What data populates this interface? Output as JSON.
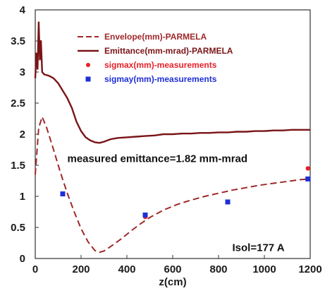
{
  "chart_data": {
    "type": "line",
    "xlabel": "z(cm)",
    "ylabel": "",
    "xlim": [
      0,
      1200
    ],
    "ylim": [
      0,
      4
    ],
    "x_ticks": [
      0,
      200,
      400,
      600,
      800,
      1000,
      1200
    ],
    "y_ticks": [
      0,
      0.5,
      1,
      1.5,
      2,
      2.5,
      3,
      3.5,
      4
    ],
    "y_tick_labels": [
      "0",
      "0.5",
      "1",
      "1.5",
      "2",
      "2.5",
      "3",
      "3.5",
      "4"
    ],
    "grid": false,
    "legend_position": "top-right",
    "series": [
      {
        "name": "Envelope(mm)-PARMELA",
        "kind": "dashed-line",
        "color": "#a0282a",
        "x": [
          0,
          15,
          30,
          50,
          80,
          110,
          140,
          170,
          200,
          230,
          260,
          280,
          300,
          340,
          380,
          420,
          460,
          500,
          560,
          620,
          680,
          740,
          800,
          860,
          920,
          980,
          1040,
          1100,
          1160,
          1200
        ],
        "y": [
          1.35,
          2.1,
          2.28,
          2.1,
          1.75,
          1.38,
          1.05,
          0.75,
          0.48,
          0.27,
          0.13,
          0.1,
          0.12,
          0.22,
          0.33,
          0.45,
          0.56,
          0.66,
          0.78,
          0.87,
          0.94,
          1.0,
          1.05,
          1.1,
          1.14,
          1.18,
          1.21,
          1.24,
          1.27,
          1.28
        ]
      },
      {
        "name": "Emittance(mm-mrad)-PARMELA",
        "kind": "solid-line",
        "color": "#7a1416",
        "x": [
          0,
          5,
          10,
          15,
          20,
          25,
          30,
          35,
          40,
          50,
          60,
          80,
          100,
          120,
          140,
          160,
          180,
          200,
          220,
          240,
          260,
          280,
          300,
          330,
          360,
          400,
          440,
          480,
          520,
          560,
          600,
          640,
          680,
          720,
          760,
          800,
          840,
          880,
          920,
          960,
          1000,
          1040,
          1080,
          1120,
          1160,
          1200
        ],
        "y": [
          2.9,
          3.3,
          3.05,
          3.8,
          3.2,
          3.5,
          3.0,
          2.98,
          2.96,
          2.95,
          2.94,
          2.9,
          2.82,
          2.7,
          2.58,
          2.42,
          2.2,
          2.05,
          1.95,
          1.9,
          1.87,
          1.86,
          1.88,
          1.92,
          1.94,
          1.95,
          1.96,
          1.97,
          1.98,
          2.0,
          2.0,
          2.01,
          2.01,
          2.02,
          2.02,
          2.03,
          2.03,
          2.04,
          2.04,
          2.05,
          2.05,
          2.06,
          2.06,
          2.07,
          2.07,
          2.07
        ]
      },
      {
        "name": "sigmax(mm)-measurements",
        "kind": "marker",
        "marker": "circle",
        "color": "#e8202a",
        "x": [
          120,
          480,
          840,
          1190
        ],
        "y": [
          1.04,
          0.67,
          0.91,
          1.45
        ]
      },
      {
        "name": "sigmay(mm)-measurements",
        "kind": "marker",
        "marker": "square",
        "color": "#1f2fd8",
        "x": [
          120,
          480,
          840,
          1190
        ],
        "y": [
          1.04,
          0.7,
          0.91,
          1.28
        ]
      }
    ],
    "annotations": [
      {
        "text": "measured emittance=1.82 mm-mrad",
        "x": 140,
        "y": 1.55
      },
      {
        "text": "Isol=177 A",
        "x": 860,
        "y": 0.12
      }
    ]
  }
}
